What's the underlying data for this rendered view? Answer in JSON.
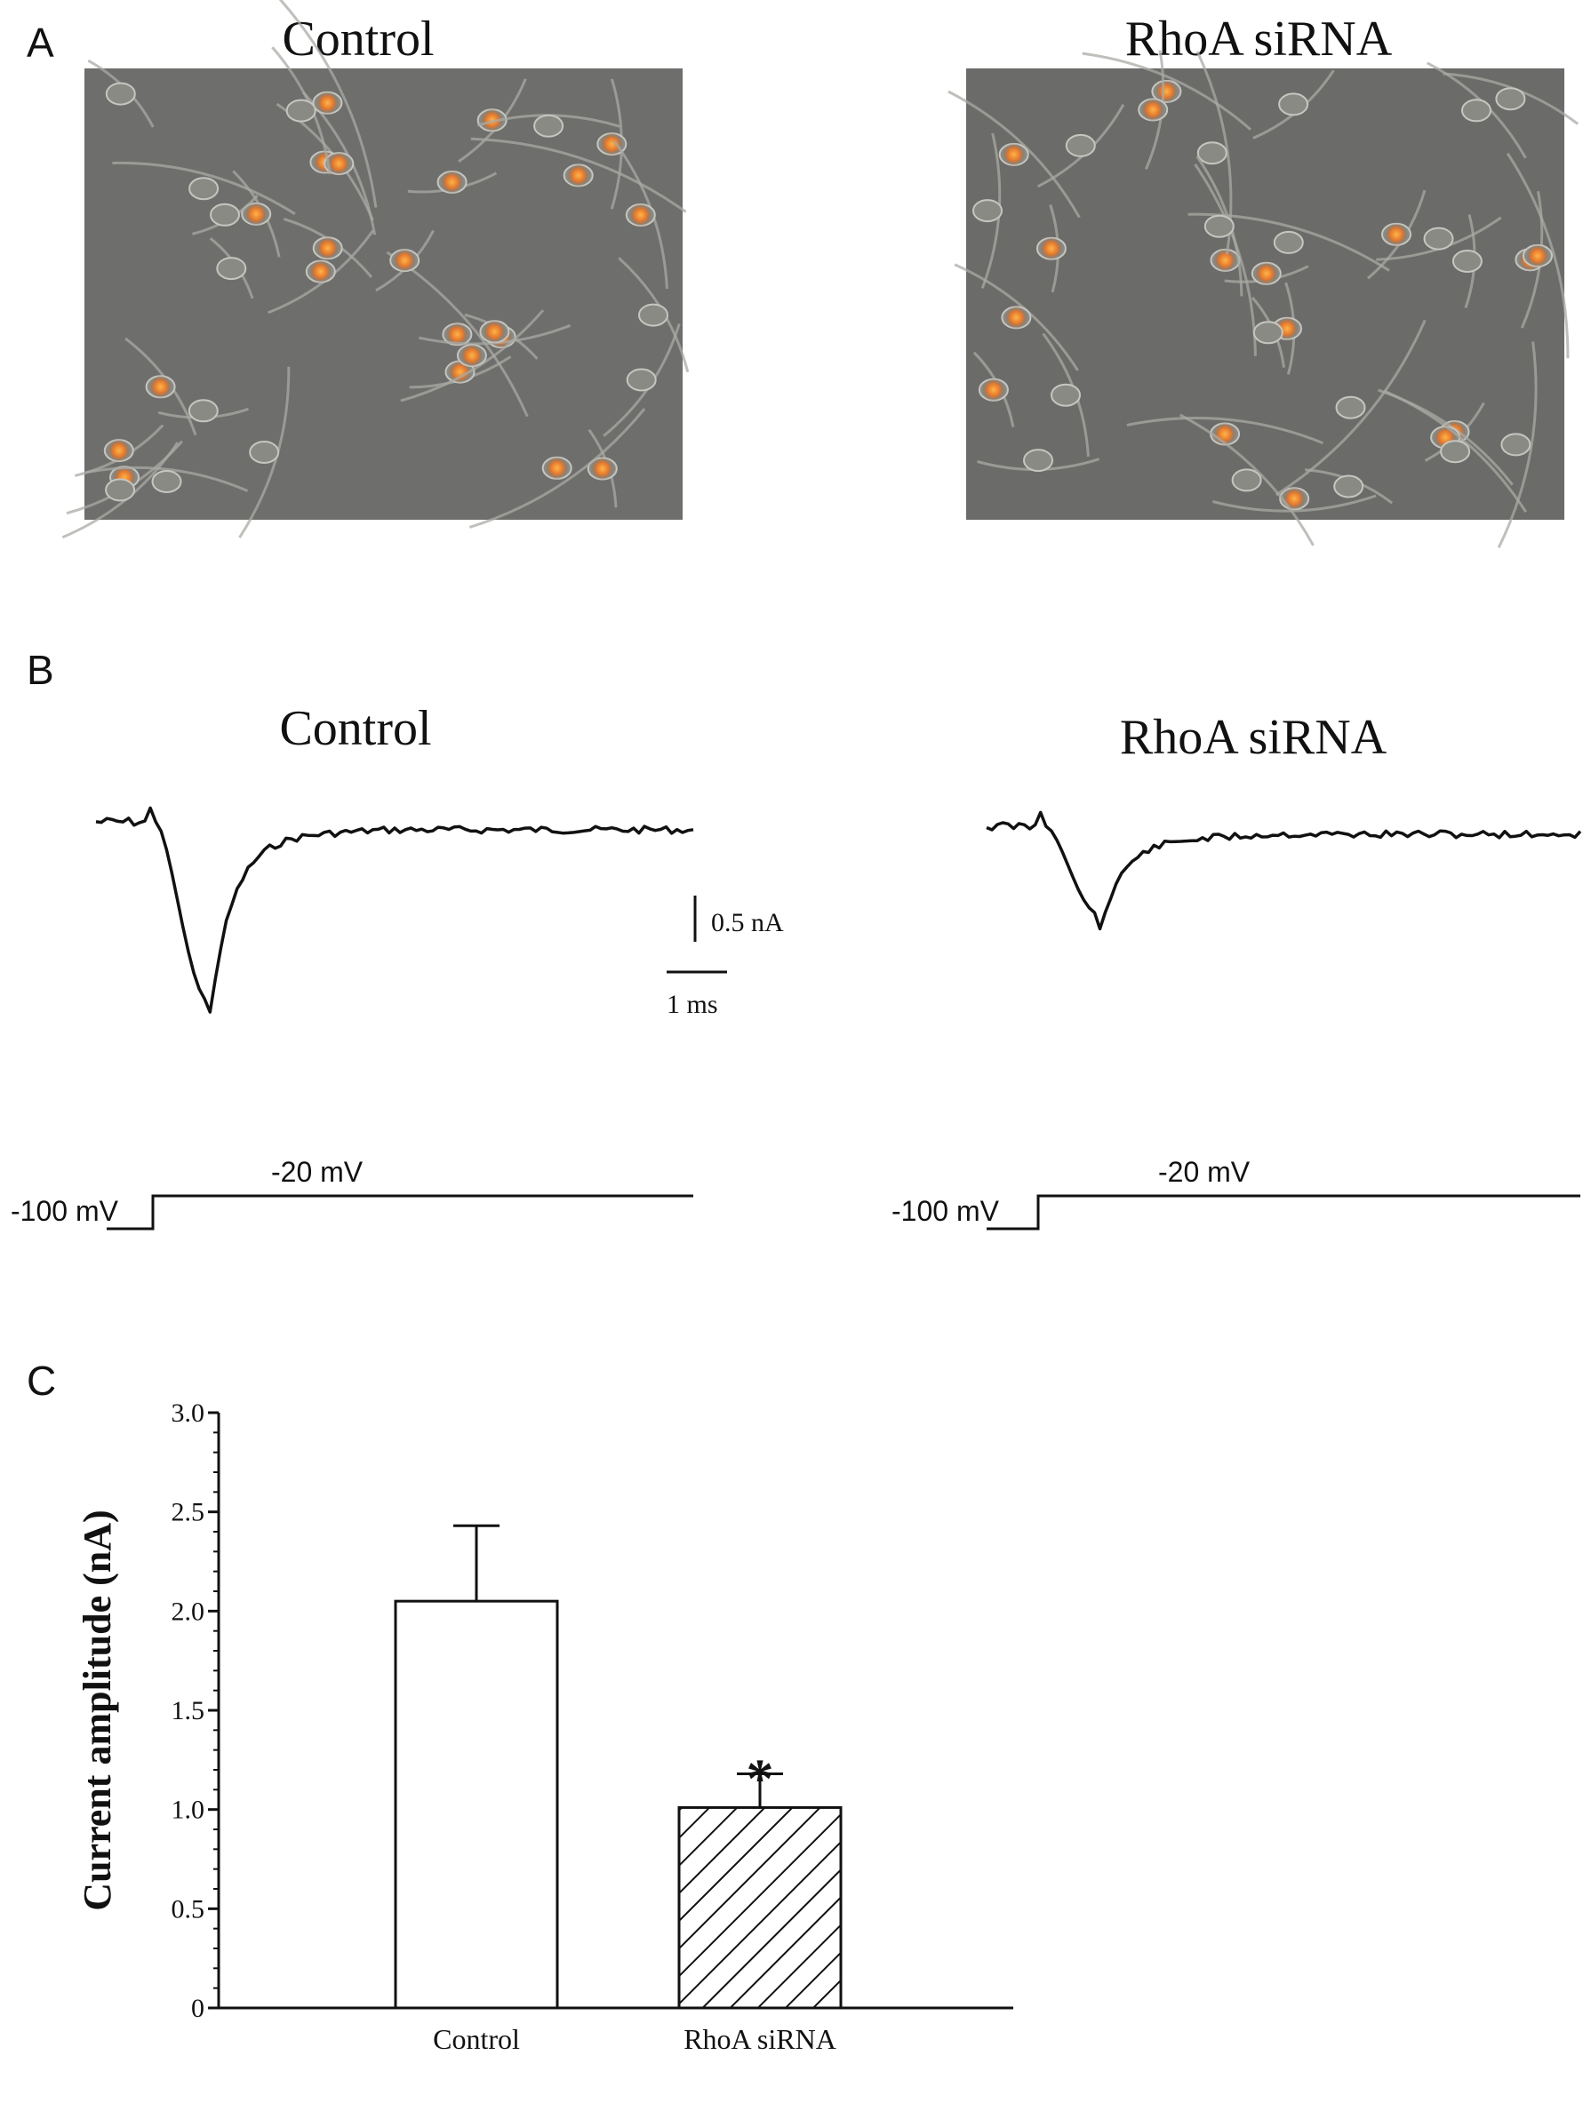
{
  "panel_a": {
    "letter": "A",
    "left_title": "Control",
    "right_title": "RhoA siRNA"
  },
  "panel_b": {
    "letter": "B",
    "left_title": "Control",
    "right_title": "RhoA siRNA",
    "scale_current": "0.5 nA",
    "scale_time": "1 ms",
    "holding_label": "-100 mV",
    "test_label": "-20 mV",
    "trace_peak_nA": {
      "control": 2.05,
      "rhoa_sirna": 1.0
    }
  },
  "panel_c": {
    "letter": "C",
    "significance": "*"
  },
  "chart_data": {
    "type": "bar",
    "categories": [
      "Control",
      "RhoA siRNA"
    ],
    "values": [
      2.05,
      1.01
    ],
    "error": [
      0.38,
      0.17
    ],
    "ylabel": "Current amplitude (nA)",
    "ylim": [
      0,
      3.0
    ],
    "yticks": [
      "0",
      "0.5",
      "1.0",
      "1.5",
      "2.0",
      "2.5",
      "3.0"
    ],
    "bar_fills": [
      "none",
      "hatched"
    ],
    "grid": false
  }
}
